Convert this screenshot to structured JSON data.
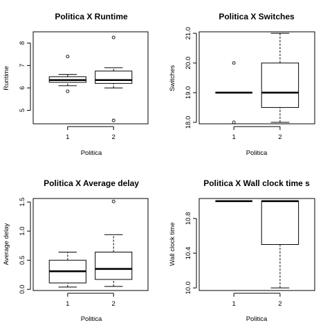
{
  "chart_data": [
    {
      "type": "boxplot",
      "title": "Politica X Runtime",
      "xlabel": "Politica",
      "ylabel": "Runtime",
      "categories": [
        "1",
        "2"
      ],
      "ylim": [
        4.4,
        8.5
      ],
      "yticks": [
        5,
        6,
        7,
        8
      ],
      "boxes": [
        {
          "category": "1",
          "whisker_low": 6.1,
          "q1": 6.25,
          "median": 6.35,
          "q3": 6.5,
          "whisker_high": 6.6,
          "outliers": [
            5.85,
            7.4
          ]
        },
        {
          "category": "2",
          "whisker_low": 6.0,
          "q1": 6.2,
          "median": 6.35,
          "q3": 6.75,
          "whisker_high": 6.9,
          "outliers": [
            4.55,
            8.25
          ]
        }
      ]
    },
    {
      "type": "boxplot",
      "title": "Politica X Switches",
      "xlabel": "Politica",
      "ylabel": "Switches",
      "categories": [
        "1",
        "2"
      ],
      "ylim": [
        17.95,
        21.05
      ],
      "yticks": [
        18.0,
        19.0,
        20.0,
        21.0
      ],
      "ytick_labels": [
        "18.0",
        "19.0",
        "20.0",
        "21.0"
      ],
      "boxes": [
        {
          "category": "1",
          "whisker_low": 19.0,
          "q1": 19.0,
          "median": 19.0,
          "q3": 19.0,
          "whisker_high": 19.0,
          "outliers": [
            18.0,
            20.0
          ]
        },
        {
          "category": "2",
          "whisker_low": 18.0,
          "q1": 18.5,
          "median": 19.0,
          "q3": 20.0,
          "whisker_high": 21.0,
          "outliers": []
        }
      ]
    },
    {
      "type": "boxplot",
      "title": "Politica X Average delay",
      "xlabel": "Politica",
      "ylabel": "Average delay",
      "categories": [
        "1",
        "2"
      ],
      "ylim": [
        -0.02,
        1.56
      ],
      "yticks": [
        0.0,
        0.5,
        1.0,
        1.5
      ],
      "ytick_labels": [
        "0.0",
        "0.5",
        "1.0",
        "1.5"
      ],
      "boxes": [
        {
          "category": "1",
          "whisker_low": 0.04,
          "q1": 0.11,
          "median": 0.31,
          "q3": 0.5,
          "whisker_high": 0.64,
          "outliers": []
        },
        {
          "category": "2",
          "whisker_low": 0.05,
          "q1": 0.17,
          "median": 0.35,
          "q3": 0.64,
          "whisker_high": 0.94,
          "outliers": [
            1.51
          ]
        }
      ]
    },
    {
      "type": "boxplot",
      "title": "Politica X Wall clock time s",
      "xlabel": "Politica",
      "ylabel": "Wall clock time",
      "categories": [
        "1",
        "2"
      ],
      "ylim": [
        9.97,
        11.03
      ],
      "yticks": [
        10.0,
        10.4,
        10.8
      ],
      "ytick_labels": [
        "10.0",
        "10.4",
        "10.8"
      ],
      "boxes": [
        {
          "category": "1",
          "whisker_low": 11.0,
          "q1": 11.0,
          "median": 11.0,
          "q3": 11.0,
          "whisker_high": 11.0,
          "outliers": []
        },
        {
          "category": "2",
          "whisker_low": 10.0,
          "q1": 10.5,
          "median": 11.0,
          "q3": 11.0,
          "whisker_high": 11.0,
          "outliers": []
        }
      ]
    }
  ]
}
